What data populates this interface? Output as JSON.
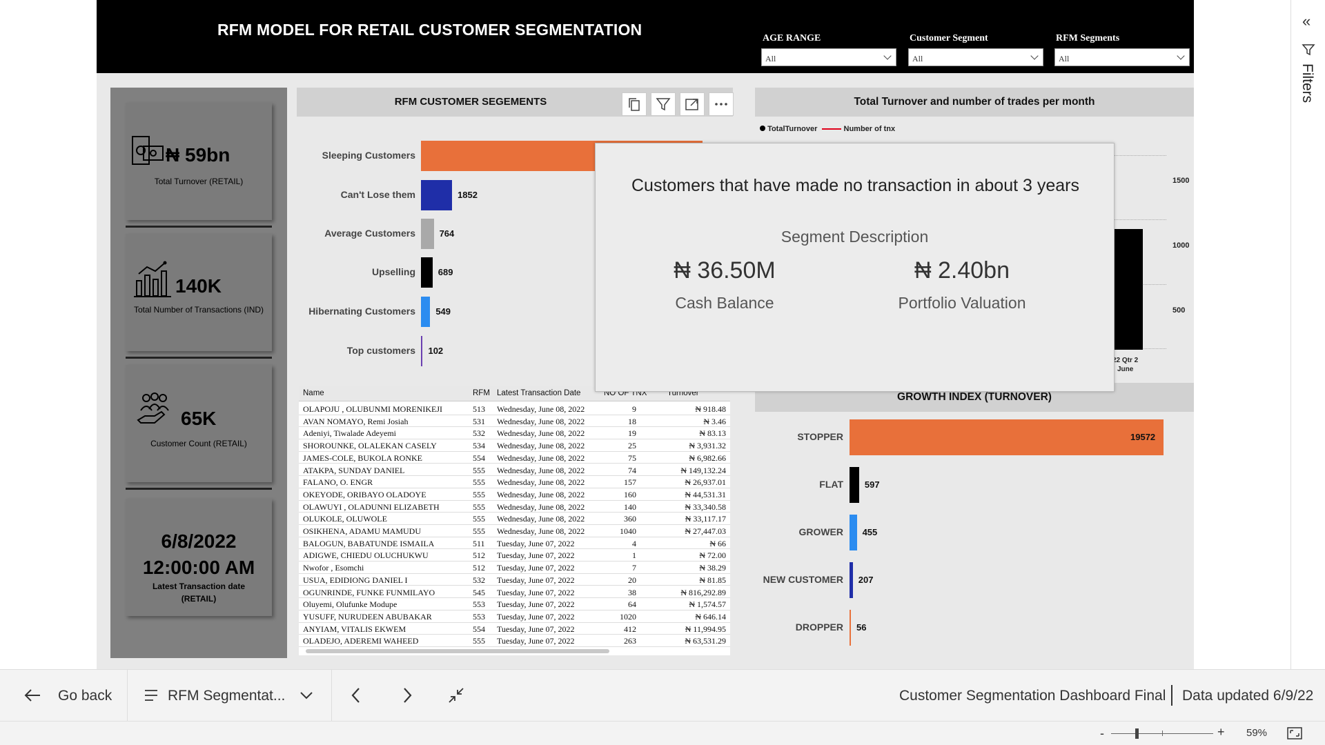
{
  "header": {
    "title": "RFM MODEL FOR RETAIL CUSTOMER SEGMENTATION",
    "filters": [
      {
        "label": "AGE RANGE",
        "value": "All"
      },
      {
        "label": "Customer Segment",
        "value": "All"
      },
      {
        "label": "RFM Segments",
        "value": "All"
      }
    ]
  },
  "kpis": [
    {
      "value": "₦ 59bn",
      "label": "Total Turnover (RETAIL)",
      "icon": "money-icon"
    },
    {
      "value": "140K",
      "label": "Total Number of Transactions (IND)",
      "icon": "growth-chart-icon"
    },
    {
      "value": "65K",
      "label": "Customer Count (RETAIL)",
      "icon": "customers-hand-icon"
    },
    {
      "value_line1": "6/8/2022",
      "value_line2": "12:00:00 AM",
      "label": "Latest Transaction date (RETAIL)"
    }
  ],
  "segments_chart": {
    "title": "RFM CUSTOMER SEGEMENTS",
    "colors": [
      "#e8703a",
      "#1f2ea8",
      "#a9a9a9",
      "#000000",
      "#2b8cf0",
      "#6a3fb0"
    ]
  },
  "chart_data": [
    {
      "type": "bar",
      "title": "RFM CUSTOMER SEGEMENTS",
      "categories": [
        "Sleeping Customers",
        "Can't Lose them",
        "Average Customers",
        "Upselling",
        "Hibernating Customers",
        "Top customers"
      ],
      "values": [
        null,
        1852,
        764,
        689,
        549,
        102
      ]
    },
    {
      "type": "bar",
      "title": "Total Turnover and number of trades per month",
      "legend": [
        "TotalTurnover",
        "Number of tnx"
      ],
      "y_ticks_right": [
        1500,
        1000,
        500
      ],
      "x_tick": "22 Qtr 2 June"
    },
    {
      "type": "bar",
      "title": "GROWTH INDEX (TURNOVER)",
      "categories": [
        "STOPPER",
        "FLAT",
        "GROWER",
        "NEW CUSTOMER",
        "DROPPER"
      ],
      "values": [
        19572,
        597,
        455,
        207,
        56
      ]
    }
  ],
  "table": {
    "columns": [
      "Name",
      "RFM",
      "Latest Transaction Date",
      "NO OF TNX",
      "Turnover"
    ],
    "rows": [
      [
        "OLAPOJU , OLUBUNMI MORENIKEJI",
        "513",
        "Wednesday, June 08, 2022",
        "9",
        "₦ 918.48"
      ],
      [
        "AVAN NOMAYO, Remi Josiah",
        "531",
        "Wednesday, June 08, 2022",
        "18",
        "₦ 3.46"
      ],
      [
        "Adeniyi, Tiwalade Adeyemi",
        "532",
        "Wednesday, June 08, 2022",
        "19",
        "₦ 83.13"
      ],
      [
        "SHOROUNKE, OLALEKAN CASELY",
        "534",
        "Wednesday, June 08, 2022",
        "25",
        "₦ 3,931.32"
      ],
      [
        "JAMES-COLE, BUKOLA RONKE",
        "554",
        "Wednesday, June 08, 2022",
        "75",
        "₦ 6,982.66"
      ],
      [
        "ATAKPA, SUNDAY DANIEL",
        "555",
        "Wednesday, June 08, 2022",
        "74",
        "₦ 149,132.24"
      ],
      [
        "FALANO, O. ENGR",
        "555",
        "Wednesday, June 08, 2022",
        "157",
        "₦ 26,937.01"
      ],
      [
        "OKEYODE, ORIBAYO OLADOYE",
        "555",
        "Wednesday, June 08, 2022",
        "160",
        "₦ 44,531.31"
      ],
      [
        "OLAWUYI , OLADUNNI ELIZABETH",
        "555",
        "Wednesday, June 08, 2022",
        "140",
        "₦ 33,340.58"
      ],
      [
        "OLUKOLE, OLUWOLE",
        "555",
        "Wednesday, June 08, 2022",
        "360",
        "₦ 33,117.17"
      ],
      [
        "OSIKHENA, ADAMU MAMUDU",
        "555",
        "Wednesday, June 08, 2022",
        "1040",
        "₦ 27,447.03"
      ],
      [
        "BALOGUN, BABATUNDE ISMAILA",
        "511",
        "Tuesday, June 07, 2022",
        "4",
        "₦ 66"
      ],
      [
        "ADIGWE, CHIEDU OLUCHUKWU",
        "512",
        "Tuesday, June 07, 2022",
        "1",
        "₦ 72.00"
      ],
      [
        "Nwofor , Esomchi",
        "512",
        "Tuesday, June 07, 2022",
        "7",
        "₦ 38.29"
      ],
      [
        "USUA, EDIDIONG DANIEL I",
        "532",
        "Tuesday, June 07, 2022",
        "20",
        "₦ 81.85"
      ],
      [
        "OGUNRINDE, FUNKE FUNMILAYO",
        "545",
        "Tuesday, June 07, 2022",
        "38",
        "₦ 816,292.89"
      ],
      [
        "Oluyemi, Olufunke Modupe",
        "553",
        "Tuesday, June 07, 2022",
        "64",
        "₦ 1,574.57"
      ],
      [
        "YUSUFF, NURUDEEN ABUBAKAR",
        "553",
        "Tuesday, June 07, 2022",
        "1020",
        "₦ 646.14"
      ],
      [
        "ANYIAM, VITALIS EKWEM",
        "554",
        "Tuesday, June 07, 2022",
        "412",
        "₦ 11,994.95"
      ],
      [
        "OLADEJO, ADEREMI WAHEED",
        "555",
        "Tuesday, June 07, 2022",
        "263",
        "₦ 63,531.29"
      ]
    ]
  },
  "turnover_chart": {
    "title": "Total Turnover and number of trades per month",
    "legend": [
      {
        "label": "TotalTurnover",
        "color": "#000000"
      },
      {
        "label": "Number of tnx",
        "color": "#e0001a"
      }
    ],
    "y_ticks": [
      "1500",
      "1000",
      "500"
    ],
    "x_tick_line1": "22 Qtr 2",
    "x_tick_line2": "June"
  },
  "tooltip": {
    "description": "Customers that have made no transaction in about 3 years",
    "description_label": "Segment Description",
    "metric1_value": "₦ 36.50M",
    "metric1_label": "Cash Balance",
    "metric2_value": "₦ 2.40bn",
    "metric2_label": "Portfolio Valuation"
  },
  "growth_chart": {
    "title": "GROWTH INDEX (TURNOVER)",
    "colors": [
      "#e8703a",
      "#000000",
      "#2b8cf0",
      "#1f2ea8",
      "#e8703a"
    ]
  },
  "right_pane": {
    "label": "Filters"
  },
  "bottom": {
    "back_label": "Go back",
    "page_label": "RFM Segmentat...",
    "report_name": "Customer Segmentation Dashboard Final",
    "data_updated": "Data updated 6/9/22",
    "zoom": "59%"
  }
}
